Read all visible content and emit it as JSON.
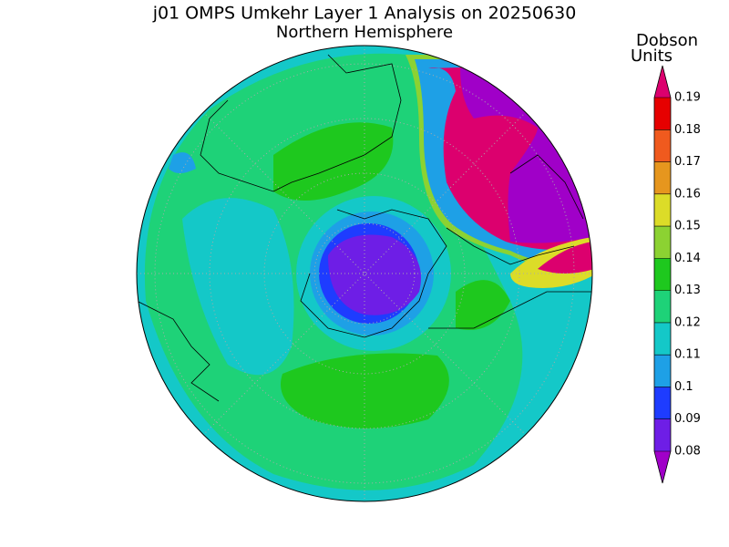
{
  "title": "j01 OMPS Umkehr Layer 1 Analysis on 20250630",
  "subtitle": "Northern Hemisphere",
  "colorbar": {
    "label_lines": [
      "Dobson",
      "Units"
    ],
    "ticks": [
      0.08,
      0.09,
      0.1,
      0.11,
      0.12,
      0.13,
      0.14,
      0.15,
      0.16,
      0.17,
      0.18,
      0.19
    ],
    "colors": [
      "#a000c8",
      "#6e1ee6",
      "#1e3cff",
      "#1ea0e6",
      "#14c8c8",
      "#1ed278",
      "#1ec81e",
      "#8cd232",
      "#dcdc28",
      "#e6961e",
      "#f05a1e",
      "#e60000",
      "#dc006e"
    ]
  }
}
